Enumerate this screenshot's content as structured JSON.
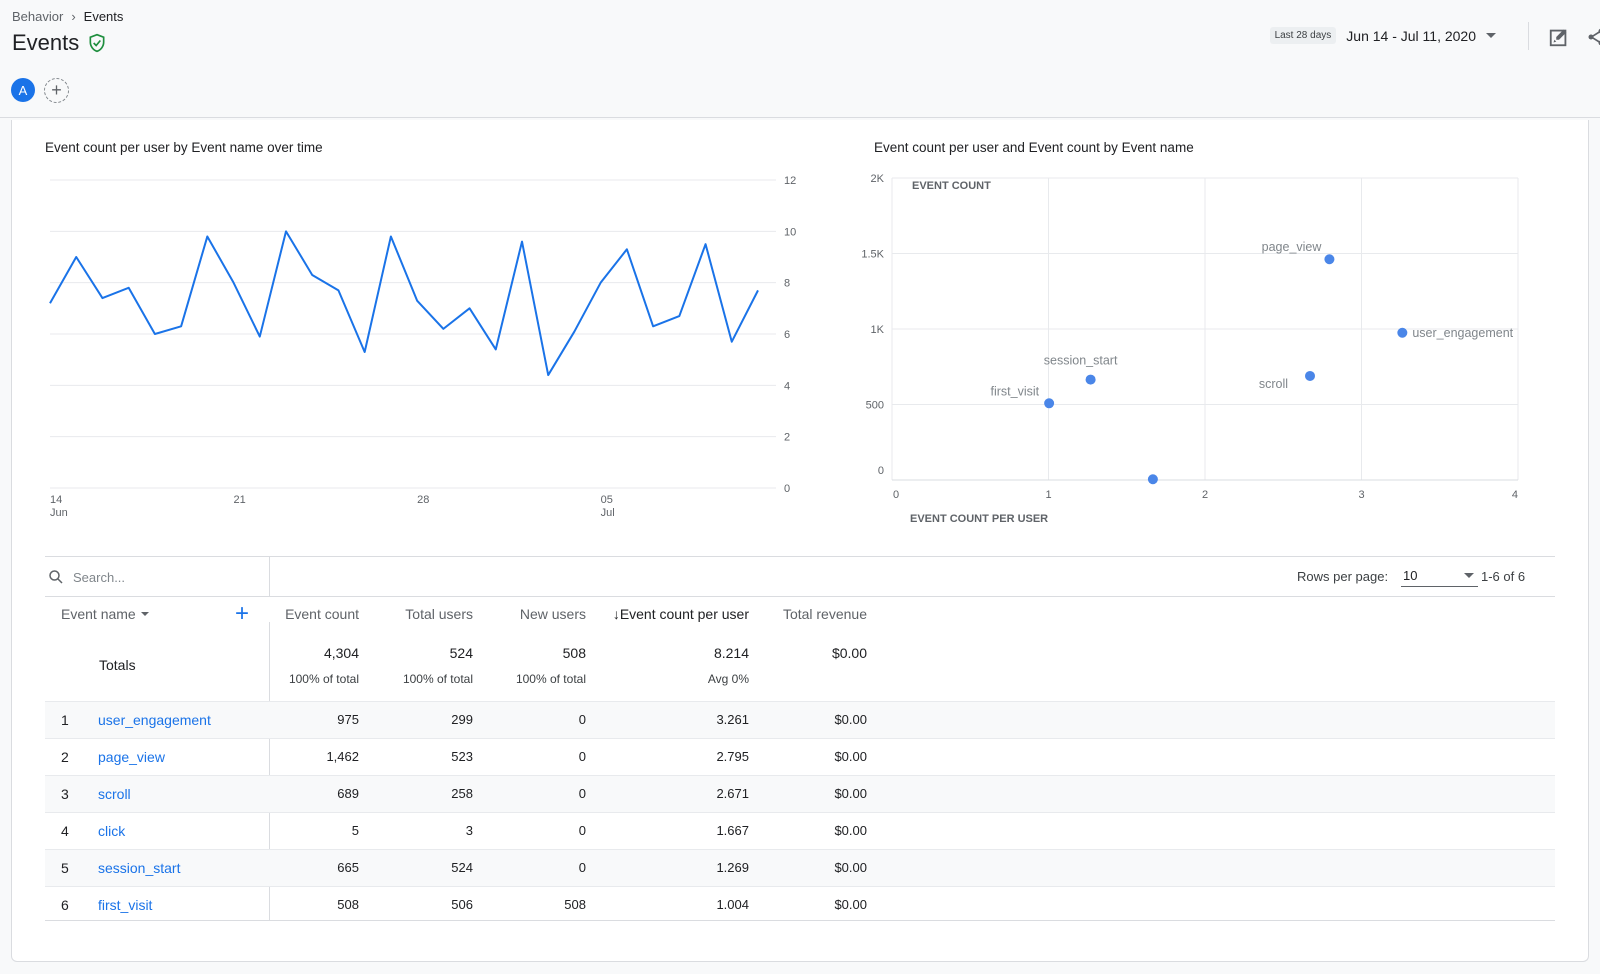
{
  "breadcrumb": {
    "parent": "Behavior",
    "current": "Events"
  },
  "page": {
    "title": "Events"
  },
  "date": {
    "chip": "Last 28 days",
    "range": "Jun 14 - Jul 11, 2020"
  },
  "comparison": {
    "avatar_letter": "A"
  },
  "colors": {
    "accent": "#1a73e8",
    "line": "#1a73e8",
    "scatter": "#4a86e8",
    "verified": "#1e8e3e"
  },
  "line_chart": {
    "title": "Event count per user by Event name over time",
    "y_ticks": [
      "0",
      "2",
      "4",
      "6",
      "8",
      "10",
      "12"
    ],
    "x_ticks": [
      {
        "day": "14",
        "month": "Jun"
      },
      {
        "day": "21",
        "month": ""
      },
      {
        "day": "28",
        "month": ""
      },
      {
        "day": "05",
        "month": "Jul"
      }
    ]
  },
  "scatter_chart": {
    "title": "Event count per user and Event count by Event name",
    "y_axis_label": "EVENT COUNT",
    "x_axis_label": "EVENT COUNT PER USER",
    "y_ticks": [
      "0",
      "500",
      "1K",
      "1.5K",
      "2K"
    ],
    "x_ticks": [
      "0",
      "1",
      "2",
      "3",
      "4"
    ]
  },
  "chart_data": [
    {
      "type": "line",
      "title": "Event count per user by Event name over time",
      "x": [
        "Jun 14",
        "Jun 15",
        "Jun 16",
        "Jun 17",
        "Jun 18",
        "Jun 19",
        "Jun 20",
        "Jun 21",
        "Jun 22",
        "Jun 23",
        "Jun 24",
        "Jun 25",
        "Jun 26",
        "Jun 27",
        "Jun 28",
        "Jun 29",
        "Jun 30",
        "Jul 1",
        "Jul 2",
        "Jul 3",
        "Jul 4",
        "Jul 5",
        "Jul 6",
        "Jul 7",
        "Jul 8",
        "Jul 9",
        "Jul 10",
        "Jul 11"
      ],
      "series": [
        {
          "values": [
            7.2,
            9.0,
            7.4,
            7.8,
            6.0,
            6.3,
            9.8,
            8.0,
            5.9,
            10.0,
            8.3,
            7.7,
            5.3,
            9.8,
            7.3,
            6.2,
            7.0,
            5.4,
            9.6,
            4.4,
            6.1,
            8.0,
            9.3,
            6.3,
            6.7,
            9.5,
            5.7,
            7.7
          ]
        }
      ],
      "ylim": [
        0,
        12
      ]
    },
    {
      "type": "scatter",
      "title": "Event count per user and Event count by Event name",
      "xlabel": "EVENT COUNT PER USER",
      "ylabel": "EVENT COUNT",
      "xlim": [
        0,
        4
      ],
      "ylim": [
        0,
        2000
      ],
      "points": [
        {
          "label": "user_engagement",
          "x": 3.261,
          "y": 975
        },
        {
          "label": "page_view",
          "x": 2.795,
          "y": 1462
        },
        {
          "label": "scroll",
          "x": 2.671,
          "y": 689
        },
        {
          "label": "",
          "x": 1.667,
          "y": 5
        },
        {
          "label": "session_start",
          "x": 1.269,
          "y": 665
        },
        {
          "label": "first_visit",
          "x": 1.004,
          "y": 508
        }
      ]
    }
  ],
  "table": {
    "search_placeholder": "Search...",
    "rows_per_page_label": "Rows per page:",
    "rows_per_page": "10",
    "pagination": "1-6 of 6",
    "columns": {
      "event_name": "Event name",
      "event_count": "Event count",
      "total_users": "Total users",
      "new_users": "New users",
      "event_count_per_user": "Event count per user",
      "total_revenue": "Total revenue"
    },
    "sort_arrow": "↓",
    "totals": {
      "label": "Totals",
      "event_count": "4,304",
      "event_count_sub": "100% of total",
      "total_users": "524",
      "total_users_sub": "100% of total",
      "new_users": "508",
      "new_users_sub": "100% of total",
      "event_count_per_user": "8.214",
      "event_count_per_user_sub": "Avg 0%",
      "total_revenue": "$0.00"
    },
    "rows": [
      {
        "idx": "1",
        "name": "user_engagement",
        "event_count": "975",
        "total_users": "299",
        "new_users": "0",
        "per_user": "3.261",
        "revenue": "$0.00"
      },
      {
        "idx": "2",
        "name": "page_view",
        "event_count": "1,462",
        "total_users": "523",
        "new_users": "0",
        "per_user": "2.795",
        "revenue": "$0.00"
      },
      {
        "idx": "3",
        "name": "scroll",
        "event_count": "689",
        "total_users": "258",
        "new_users": "0",
        "per_user": "2.671",
        "revenue": "$0.00"
      },
      {
        "idx": "4",
        "name": "click",
        "event_count": "5",
        "total_users": "3",
        "new_users": "0",
        "per_user": "1.667",
        "revenue": "$0.00"
      },
      {
        "idx": "5",
        "name": "session_start",
        "event_count": "665",
        "total_users": "524",
        "new_users": "0",
        "per_user": "1.269",
        "revenue": "$0.00"
      },
      {
        "idx": "6",
        "name": "first_visit",
        "event_count": "508",
        "total_users": "506",
        "new_users": "508",
        "per_user": "1.004",
        "revenue": "$0.00"
      }
    ]
  }
}
